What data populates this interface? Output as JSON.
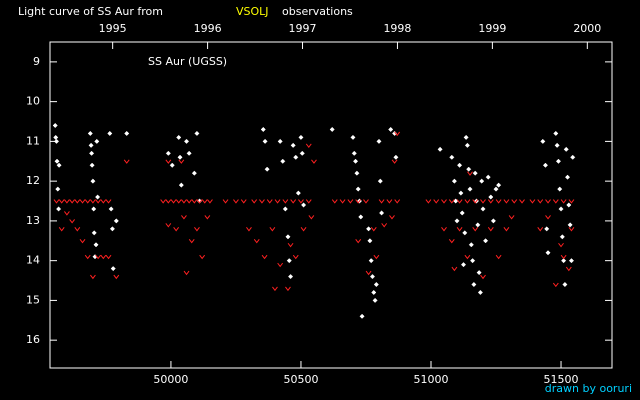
{
  "chart_data": {
    "type": "scatter",
    "title_parts": [
      "Light curve of SS Aur from",
      "VSOLJ",
      "observations"
    ],
    "annotation": "SS Aur (UGSS)",
    "credit": "drawn by ooruri",
    "xlim": [
      49535,
      51696
    ],
    "xticks": [
      50000,
      50500,
      51000,
      51500
    ],
    "x2lim": [
      1994.34,
      2000.26
    ],
    "x2ticks": [
      1995,
      1996,
      1997,
      1998,
      1999,
      2000
    ],
    "ylim": [
      8.5,
      16.7
    ],
    "yticks": [
      9,
      10,
      11,
      12,
      13,
      14,
      15,
      16
    ],
    "y_inverted": true,
    "series": [
      {
        "color": "#ffffff",
        "marker": "diamond",
        "x": [
          49555,
          49557,
          49560,
          49562,
          49565,
          49568,
          49570,
          49690,
          49693,
          49695,
          49697,
          49700,
          49703,
          49705,
          49708,
          49712,
          49715,
          49718,
          49765,
          49770,
          49775,
          49778,
          49790,
          49830,
          49990,
          50005,
          50030,
          50035,
          50040,
          50060,
          50070,
          50100,
          50110,
          50090,
          50355,
          50362,
          50370,
          50420,
          50430,
          50440,
          50450,
          50455,
          50460,
          50470,
          50480,
          50490,
          50500,
          50505,
          50510,
          50620,
          50700,
          50705,
          50710,
          50715,
          50720,
          50725,
          50730,
          50760,
          50770,
          50775,
          50780,
          50785,
          50790,
          50735,
          50800,
          50805,
          50810,
          50765,
          50860,
          50865,
          50845,
          51035,
          51080,
          51090,
          51095,
          51100,
          51110,
          51115,
          51120,
          51130,
          51140,
          51145,
          51150,
          51155,
          51160,
          51165,
          51170,
          51175,
          51180,
          51185,
          51190,
          51195,
          51200,
          51210,
          51220,
          51230,
          51240,
          51250,
          51260,
          51135,
          51125,
          51430,
          51440,
          51445,
          51450,
          51480,
          51485,
          51490,
          51495,
          51500,
          51505,
          51510,
          51515,
          51520,
          51525,
          51530,
          51535,
          51540,
          51545
        ],
        "values": [
          10.6,
          10.9,
          11.0,
          11.5,
          12.2,
          12.7,
          11.6,
          10.8,
          11.1,
          11.3,
          11.6,
          12.0,
          12.7,
          13.3,
          13.9,
          13.6,
          11.0,
          12.4,
          10.8,
          12.7,
          13.2,
          14.2,
          13.0,
          10.8,
          11.3,
          11.6,
          10.9,
          11.4,
          12.1,
          11.0,
          11.3,
          10.8,
          12.5,
          11.8,
          10.7,
          11.0,
          11.7,
          11.0,
          11.5,
          12.7,
          13.4,
          14.0,
          14.4,
          11.1,
          11.4,
          12.3,
          10.9,
          11.3,
          12.6,
          10.7,
          10.9,
          11.3,
          11.5,
          11.8,
          12.2,
          12.5,
          12.9,
          13.2,
          14.0,
          14.4,
          14.8,
          15.0,
          14.6,
          15.4,
          11.0,
          12.0,
          12.8,
          13.5,
          10.8,
          11.4,
          10.7,
          11.2,
          11.4,
          12.0,
          12.5,
          13.0,
          11.6,
          12.3,
          12.8,
          13.3,
          11.1,
          11.7,
          12.2,
          13.6,
          14.0,
          14.6,
          11.8,
          12.5,
          13.1,
          14.3,
          14.8,
          12.0,
          12.7,
          13.5,
          11.9,
          12.4,
          13.0,
          12.2,
          12.1,
          10.9,
          14.1,
          11.0,
          11.6,
          13.2,
          13.8,
          10.8,
          11.1,
          11.5,
          12.2,
          12.7,
          13.4,
          14.0,
          14.6,
          11.2,
          11.9,
          12.6,
          13.1,
          14.0,
          11.4
        ]
      },
      {
        "color": "#ff2020",
        "marker": "v",
        "x": [
          49560,
          49580,
          49600,
          49620,
          49640,
          49660,
          49680,
          49700,
          49720,
          49740,
          49760,
          49600,
          49620,
          49640,
          49660,
          49680,
          49720,
          49740,
          49760,
          49790,
          49830,
          49580,
          49700,
          49970,
          49990,
          50010,
          50030,
          50050,
          50070,
          50090,
          50110,
          50130,
          50150,
          49990,
          50020,
          50050,
          50080,
          50100,
          50060,
          50120,
          49990,
          50040,
          50140,
          50210,
          50250,
          50280,
          50320,
          50350,
          50380,
          50410,
          50440,
          50470,
          50500,
          50530,
          50300,
          50330,
          50360,
          50390,
          50420,
          50450,
          50480,
          50510,
          50540,
          50400,
          50460,
          50550,
          50530,
          50630,
          50660,
          50690,
          50720,
          50750,
          50780,
          50810,
          50840,
          50870,
          50760,
          50790,
          50820,
          50850,
          50860,
          50870,
          50720,
          50990,
          51020,
          51050,
          51080,
          51110,
          51140,
          51170,
          51200,
          51230,
          51260,
          51290,
          51320,
          51350,
          51050,
          51080,
          51110,
          51140,
          51170,
          51200,
          51230,
          51260,
          51290,
          51090,
          51150,
          51310,
          51390,
          51420,
          51450,
          51480,
          51510,
          51540,
          51420,
          51450,
          51480,
          51510,
          51540,
          51530,
          51500
        ],
        "values": [
          12.5,
          12.5,
          12.5,
          12.5,
          12.5,
          12.5,
          12.5,
          12.5,
          12.5,
          12.5,
          12.5,
          12.8,
          13.0,
          13.2,
          13.5,
          13.9,
          13.9,
          13.9,
          13.9,
          14.4,
          11.5,
          13.2,
          14.4,
          12.5,
          12.5,
          12.5,
          12.5,
          12.5,
          12.5,
          12.5,
          12.5,
          12.5,
          12.5,
          13.1,
          13.2,
          12.9,
          13.5,
          13.2,
          14.3,
          13.9,
          11.5,
          11.5,
          12.9,
          12.5,
          12.5,
          12.5,
          12.5,
          12.5,
          12.5,
          12.5,
          12.5,
          12.5,
          12.5,
          12.5,
          13.2,
          13.5,
          13.9,
          13.2,
          14.1,
          14.7,
          13.9,
          13.2,
          12.9,
          14.7,
          13.6,
          11.5,
          11.1,
          12.5,
          12.5,
          12.5,
          12.5,
          12.5,
          13.2,
          12.5,
          12.5,
          12.5,
          14.3,
          13.9,
          13.1,
          12.9,
          11.5,
          10.8,
          13.5,
          12.5,
          12.5,
          12.5,
          12.5,
          12.5,
          12.5,
          12.5,
          12.5,
          12.5,
          12.5,
          12.5,
          12.5,
          12.5,
          13.2,
          13.5,
          13.2,
          13.9,
          13.2,
          14.4,
          13.2,
          13.9,
          13.2,
          14.2,
          11.8,
          12.9,
          12.5,
          12.5,
          12.5,
          12.5,
          12.5,
          12.5,
          13.2,
          12.9,
          14.6,
          13.9,
          13.2,
          14.2,
          13.6
        ]
      }
    ]
  }
}
